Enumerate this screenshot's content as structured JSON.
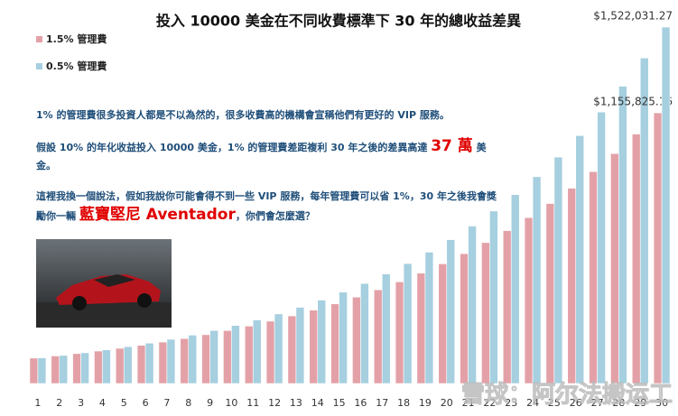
{
  "chart_data": {
    "type": "bar",
    "title": "投入 10000 美金在不同收費標準下 30 年的總收益差異",
    "categories": [
      "1",
      "2",
      "3",
      "4",
      "5",
      "6",
      "7",
      "8",
      "9",
      "10",
      "11",
      "12",
      "13",
      "14",
      "15",
      "16",
      "17",
      "18",
      "19",
      "20",
      "21",
      "22",
      "23",
      "24",
      "25",
      "26",
      "27",
      "28",
      "29",
      "30"
    ],
    "series": [
      {
        "name": "1.5% 管理費",
        "color": "#e3a1a7",
        "values": [
          108500,
          117723,
          127729,
          138586,
          150366,
          163147,
          177014,
          192060,
          208386,
          226098,
          245317,
          266169,
          288793,
          313340,
          339974,
          368872,
          400226,
          434245,
          471156,
          511205,
          554657,
          601803,
          652956,
          708457,
          768676,
          834014,
          904905,
          981822,
          1065277,
          1155825.16
        ],
        "value_labels": [
          null,
          null,
          null,
          null,
          null,
          null,
          null,
          null,
          null,
          null,
          null,
          null,
          null,
          null,
          null,
          null,
          null,
          null,
          null,
          null,
          null,
          null,
          null,
          null,
          null,
          null,
          null,
          null,
          null,
          "$1,155,825.16"
        ]
      },
      {
        "name": "0.5% 管理費",
        "color": "#a6cfdf",
        "values": [
          109500,
          119903,
          131293,
          143766,
          157424,
          172379,
          188755,
          206687,
          226322,
          247823,
          271366,
          297146,
          325375,
          356285,
          390132,
          427195,
          467778,
          512217,
          560878,
          614161,
          672507,
          736395,
          806352,
          882956,
          966836,
          1058686,
          1159261,
          1269391,
          1389983,
          1522031.27
        ],
        "value_labels": [
          null,
          null,
          null,
          null,
          null,
          null,
          null,
          null,
          null,
          null,
          null,
          null,
          null,
          null,
          null,
          null,
          null,
          null,
          null,
          null,
          null,
          null,
          null,
          null,
          null,
          null,
          null,
          null,
          null,
          "$1,522,031.27"
        ]
      }
    ],
    "legend": "top-left",
    "grid": false
  },
  "text": {
    "paragraphs": [
      [
        {
          "text": "1% 的管理費很多投資人都是不以為然的，很多收費高的機構會宣稱他們有更好的 VIP 服務。",
          "emphasis": false
        }
      ],
      [
        {
          "text": "假設 10% 的年化收益投入 10000 美金，1% 的管理費差距複利 30 年之後的差異高達 ",
          "emphasis": false
        },
        {
          "text": "37 萬",
          "emphasis": true
        },
        {
          "text": " 美金。",
          "emphasis": false
        }
      ],
      [
        {
          "text": "這裡我換一個說法，假如我說你可能會得不到一些 VIP 服務，每年管理費可以省 1%，30 年之後我會獎勵你一輛 ",
          "emphasis": false
        },
        {
          "text": "藍寶堅尼 Aventador",
          "emphasis": true
        },
        {
          "text": "，你們會怎麼選？",
          "emphasis": false
        }
      ]
    ]
  },
  "watermark": "雪球：阿尔法搬运工"
}
